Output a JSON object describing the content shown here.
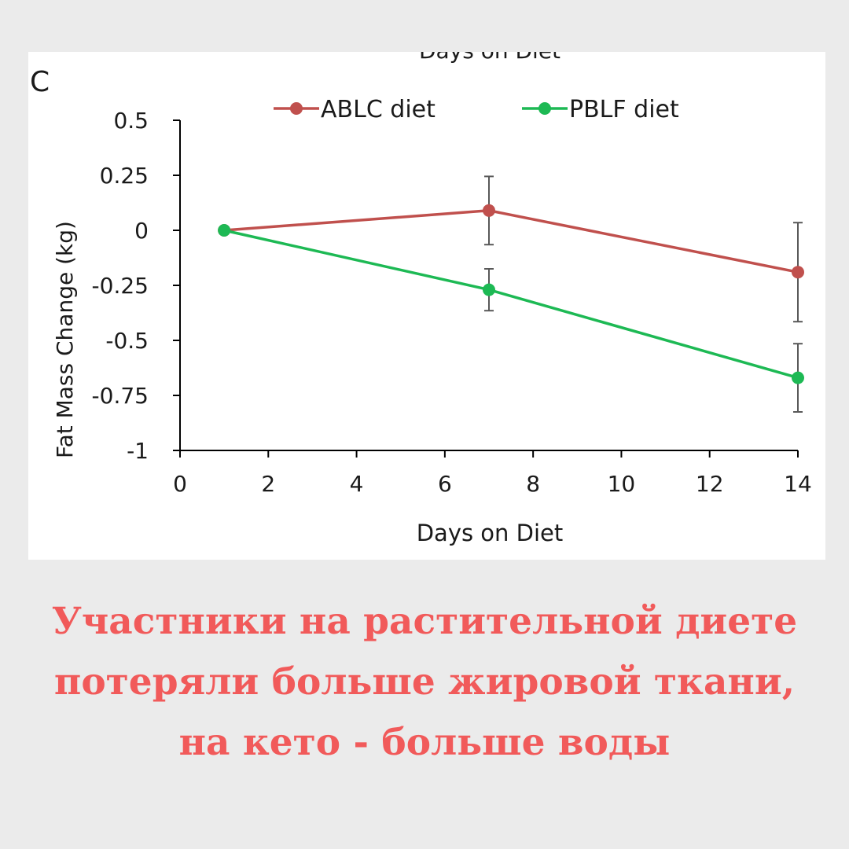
{
  "chart_data": {
    "type": "line",
    "panel_label": "C",
    "top_label": "Days on Diet",
    "xlabel": "Days on Diet",
    "ylabel": "Fat Mass Change (kg)",
    "xlim": [
      0,
      14
    ],
    "ylim": [
      -1,
      0.5
    ],
    "x_ticks": [
      "0",
      "2",
      "4",
      "6",
      "8",
      "10",
      "12",
      "14"
    ],
    "y_ticks": [
      "0.5",
      "0.25",
      "0",
      "-0.25",
      "-0.5",
      "-0.75",
      "-1"
    ],
    "legend_position": "top",
    "grid": false,
    "x": [
      1,
      7,
      14
    ],
    "series": [
      {
        "name": "ABLC diet",
        "color": "#c0504d",
        "values": [
          0,
          0.09,
          -0.19
        ],
        "error": [
          0,
          0.155,
          0.225
        ]
      },
      {
        "name": "PBLF diet",
        "color": "#1db954",
        "values": [
          0,
          -0.27,
          -0.67
        ],
        "error": [
          0,
          0.095,
          0.155
        ]
      }
    ]
  },
  "caption": {
    "lines": [
      "Участники на растительной диете",
      "потеряли больше жировой ткани,",
      "на кето - больше воды"
    ],
    "color": "#f15a5a"
  }
}
